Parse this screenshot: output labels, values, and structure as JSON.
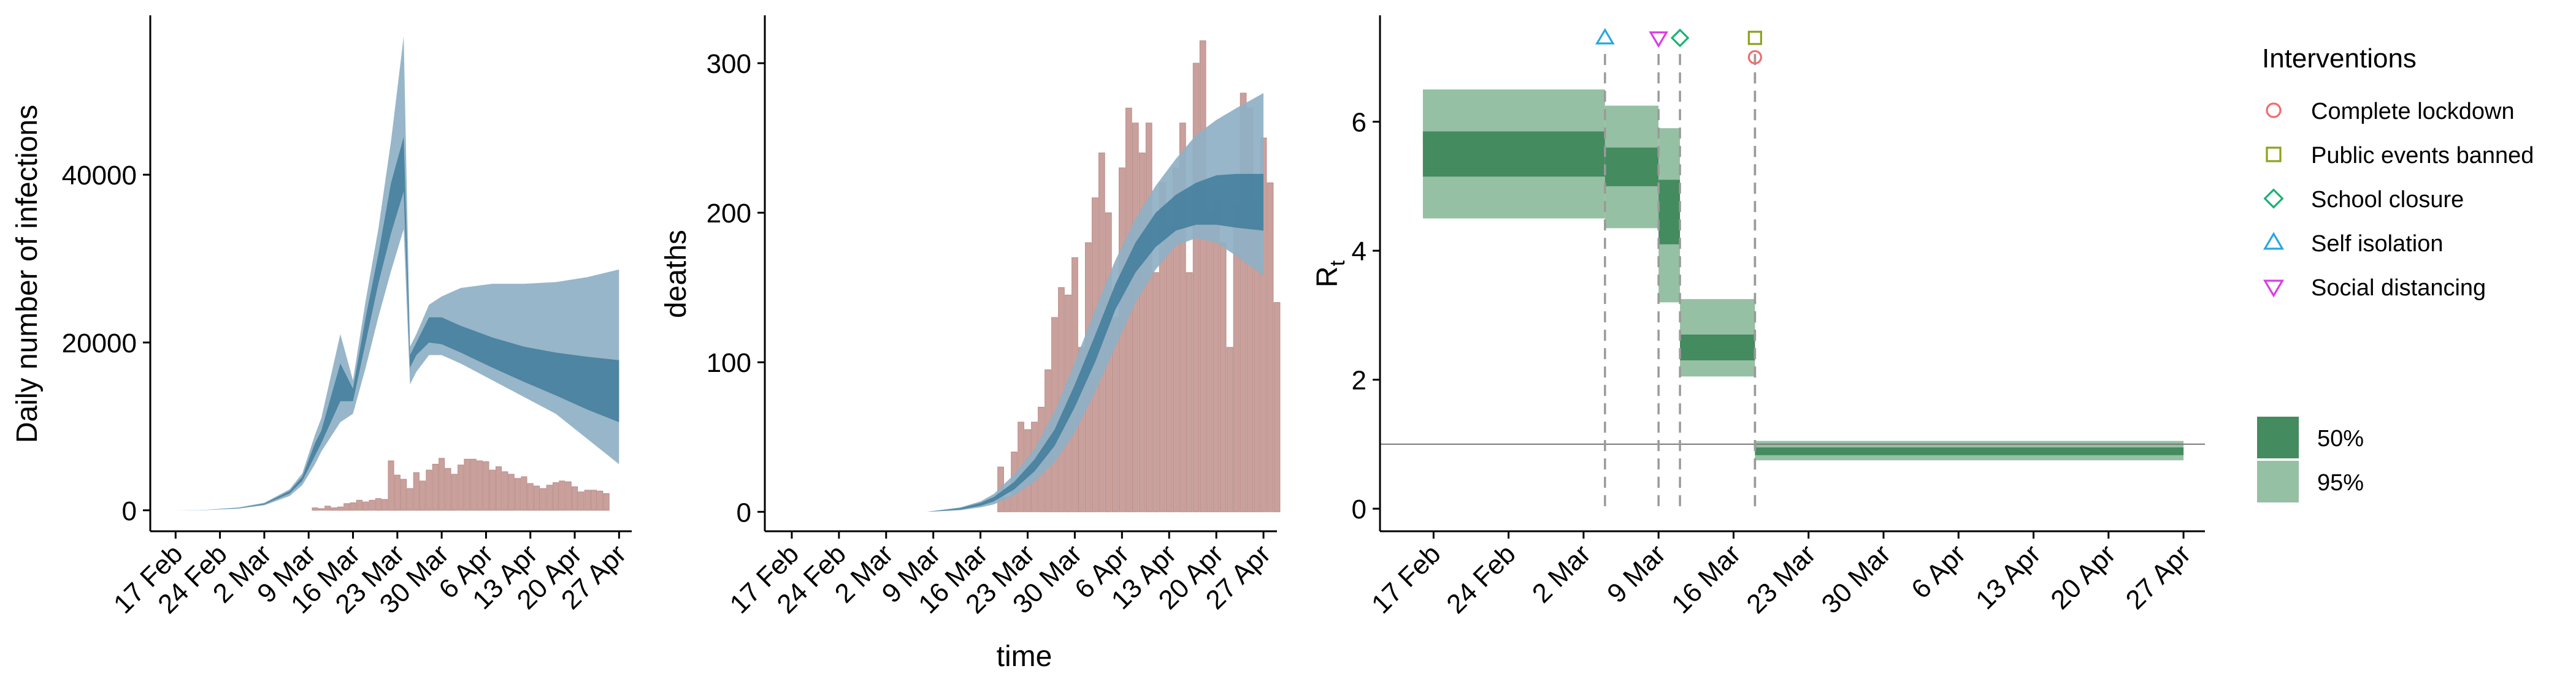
{
  "colors": {
    "bar": "#c9a09c",
    "bar_stroke": "#b98d88",
    "blue_outer": "#8fb0c4",
    "blue_inner": "#3f7c9b",
    "green_outer": "#96c0a3",
    "green_inner": "#448b5f",
    "dashed": "#9a9a9a",
    "refline": "#777777",
    "lockdown": "#f26c6c",
    "events": "#8da11c",
    "school": "#18b374",
    "isolation": "#27a8e0",
    "distancing": "#dc3ce6"
  },
  "x_ticks": [
    "17 Feb",
    "24 Feb",
    "2 Mar",
    "9 Mar",
    "16 Mar",
    "23 Mar",
    "30 Mar",
    "6 Apr",
    "13 Apr",
    "20 Apr",
    "27 Apr"
  ],
  "chart_data": [
    {
      "type": "bar",
      "ylabel": "Daily number of infections",
      "xlabel": "",
      "x_ticks": [
        "17 Feb",
        "24 Feb",
        "2 Mar",
        "9 Mar",
        "16 Mar",
        "23 Mar",
        "30 Mar",
        "6 Apr",
        "13 Apr",
        "20 Apr",
        "27 Apr"
      ],
      "y_ticks": [
        0,
        20000,
        40000
      ],
      "ylim": [
        -2500,
        59000
      ],
      "xlim_days": [
        -4,
        72
      ],
      "bars_start_day": 22,
      "bars": [
        300,
        200,
        500,
        300,
        400,
        800,
        900,
        1200,
        1000,
        1200,
        1400,
        1300,
        5900,
        4200,
        3700,
        2600,
        4500,
        3500,
        4800,
        5500,
        6200,
        5000,
        4300,
        5400,
        6100,
        6100,
        5900,
        5800,
        4800,
        5200,
        4600,
        4300,
        3800,
        4000,
        3200,
        2900,
        2600,
        3000,
        3300,
        3500,
        3400,
        2800,
        2200,
        2400,
        2400,
        2300,
        2000
      ],
      "band_days": [
        0,
        5,
        10,
        14,
        18,
        20,
        22,
        23,
        26,
        28,
        30,
        32,
        34,
        36,
        37,
        38,
        40,
        42,
        45,
        50,
        55,
        60,
        65,
        70
      ],
      "outer_low": [
        0,
        40,
        200,
        600,
        1700,
        3000,
        5500,
        7000,
        10500,
        11500,
        17000,
        23000,
        28500,
        33500,
        15000,
        16500,
        18500,
        18500,
        17500,
        15500,
        13500,
        11500,
        8500,
        5500
      ],
      "outer_high": [
        0,
        60,
        350,
        900,
        2500,
        4400,
        9000,
        11000,
        21000,
        15500,
        25000,
        33500,
        44000,
        56500,
        19500,
        21000,
        24500,
        25500,
        26500,
        27000,
        27000,
        27200,
        27800,
        28700
      ],
      "inner_low": [
        0,
        45,
        250,
        700,
        2000,
        3500,
        6500,
        8000,
        13000,
        13000,
        20000,
        27000,
        33000,
        38000,
        17000,
        18500,
        20000,
        19800,
        18800,
        17000,
        15300,
        13700,
        12000,
        10500
      ],
      "inner_high": [
        0,
        55,
        300,
        800,
        2300,
        4000,
        8000,
        9500,
        17500,
        14500,
        23000,
        30500,
        39000,
        44500,
        18500,
        20000,
        23000,
        23000,
        22000,
        20600,
        19500,
        18800,
        18300,
        17900
      ]
    },
    {
      "type": "bar",
      "ylabel": "deaths",
      "xlabel": "time",
      "x_ticks": [
        "17 Feb",
        "24 Feb",
        "2 Mar",
        "9 Mar",
        "16 Mar",
        "23 Mar",
        "30 Mar",
        "6 Apr",
        "13 Apr",
        "20 Apr",
        "27 Apr"
      ],
      "y_ticks": [
        0,
        100,
        200,
        300
      ],
      "ylim": [
        -13,
        332
      ],
      "xlim_days": [
        -4,
        72
      ],
      "bars_start_day": 31,
      "bars": [
        30,
        10,
        40,
        60,
        55,
        60,
        70,
        95,
        130,
        150,
        145,
        170,
        110,
        180,
        210,
        240,
        200,
        130,
        230,
        270,
        260,
        240,
        260,
        160,
        220,
        190,
        230,
        260,
        160,
        300,
        315,
        200,
        210,
        180,
        110,
        205,
        280,
        270,
        210,
        250,
        220,
        140
      ],
      "band_days": [
        20,
        25,
        28,
        30,
        33,
        36,
        39,
        42,
        45,
        48,
        51,
        54,
        57,
        60,
        63,
        66,
        70
      ],
      "outer_low": [
        0,
        1,
        3,
        5,
        11,
        20,
        33,
        53,
        80,
        110,
        140,
        162,
        178,
        183,
        180,
        171,
        158
      ],
      "outer_high": [
        0,
        3,
        7,
        12,
        25,
        42,
        67,
        100,
        135,
        168,
        196,
        218,
        236,
        252,
        262,
        270,
        280
      ],
      "inner_low": [
        0,
        1.5,
        4,
        7,
        15,
        27,
        44,
        70,
        100,
        135,
        160,
        177,
        188,
        192,
        192,
        190,
        188
      ],
      "inner_high": [
        0,
        2.5,
        6,
        10,
        20,
        35,
        55,
        85,
        118,
        152,
        180,
        200,
        212,
        220,
        225,
        226,
        226
      ]
    },
    {
      "type": "area",
      "ylabel": "R",
      "ylabel_sub": "t",
      "xlabel": "",
      "x_ticks": [
        "17 Feb",
        "24 Feb",
        "2 Mar",
        "9 Mar",
        "16 Mar",
        "23 Mar",
        "30 Mar",
        "6 Apr",
        "13 Apr",
        "20 Apr",
        "27 Apr"
      ],
      "y_ticks": [
        0,
        2,
        4,
        6
      ],
      "ylim": [
        -0.35,
        7.65
      ],
      "xlim_days": [
        -5,
        72
      ],
      "reference_line": 1,
      "segments": [
        {
          "start": -1,
          "end": 16,
          "low95": 4.5,
          "high95": 6.5,
          "low50": 5.15,
          "high50": 5.85
        },
        {
          "start": 16,
          "end": 21,
          "low95": 4.35,
          "high95": 6.25,
          "low50": 5.0,
          "high50": 5.6
        },
        {
          "start": 21,
          "end": 23,
          "low95": 3.2,
          "high95": 5.9,
          "low50": 4.1,
          "high50": 5.1
        },
        {
          "start": 23,
          "end": 30,
          "low95": 2.05,
          "high95": 3.25,
          "low50": 2.3,
          "high50": 2.7
        },
        {
          "start": 30,
          "end": 70,
          "low95": 0.75,
          "high95": 1.05,
          "low50": 0.83,
          "high50": 0.95
        }
      ],
      "interventions": [
        {
          "name": "Self isolation",
          "day": 16,
          "y": 7.3,
          "shape": "triangle-up",
          "color_key": "isolation"
        },
        {
          "name": "Social distancing",
          "day": 21,
          "y": 7.3,
          "shape": "triangle-down",
          "color_key": "distancing"
        },
        {
          "name": "School closure",
          "day": 23,
          "y": 7.3,
          "shape": "diamond",
          "color_key": "school"
        },
        {
          "name": "Public events banned",
          "day": 30,
          "y": 7.3,
          "shape": "square",
          "color_key": "events"
        },
        {
          "name": "Complete lockdown",
          "day": 30,
          "y": 7.0,
          "shape": "circle",
          "color_key": "lockdown"
        }
      ]
    }
  ],
  "legend": {
    "title": "Interventions",
    "items": [
      {
        "label": "Complete lockdown",
        "shape": "circle",
        "color_key": "lockdown"
      },
      {
        "label": "Public events banned",
        "shape": "square",
        "color_key": "events"
      },
      {
        "label": "School closure",
        "shape": "diamond",
        "color_key": "school"
      },
      {
        "label": "Self isolation",
        "shape": "triangle-up",
        "color_key": "isolation"
      },
      {
        "label": "Social distancing",
        "shape": "triangle-down",
        "color_key": "distancing"
      }
    ],
    "bands": [
      {
        "label": "50%",
        "color_key": "green_inner"
      },
      {
        "label": "95%",
        "color_key": "green_outer"
      }
    ]
  }
}
